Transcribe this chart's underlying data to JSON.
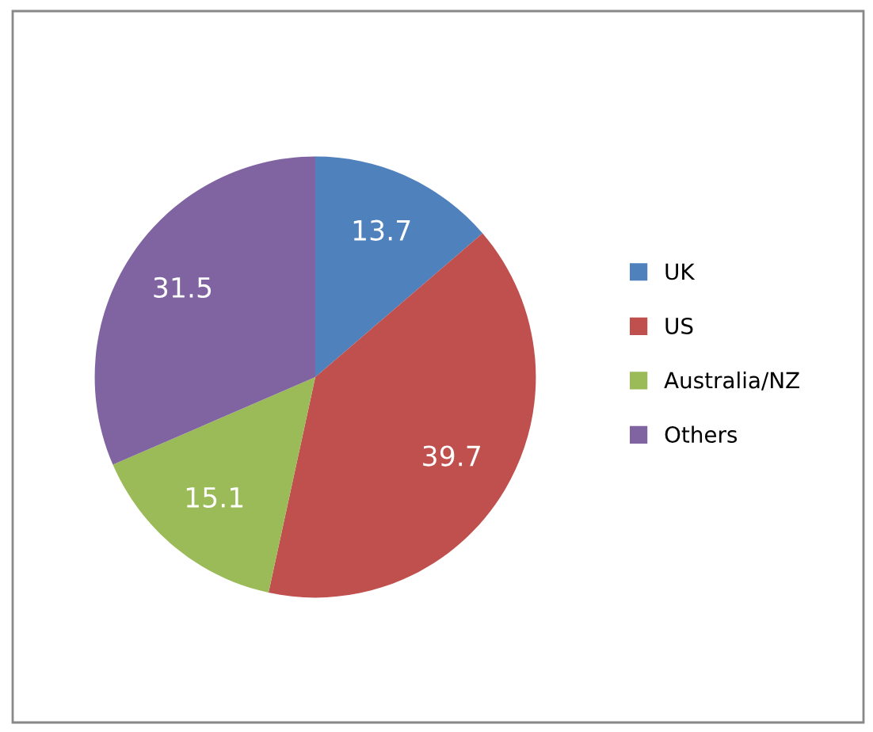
{
  "chart_data": {
    "type": "pie",
    "categories": [
      "UK",
      "US",
      "Australia/NZ",
      "Others"
    ],
    "values": [
      13.7,
      39.7,
      15.1,
      31.5
    ],
    "colors": [
      "#4f81bd",
      "#c0504d",
      "#9bbb59",
      "#8064a2"
    ],
    "data_labels": true,
    "legend": "right"
  }
}
